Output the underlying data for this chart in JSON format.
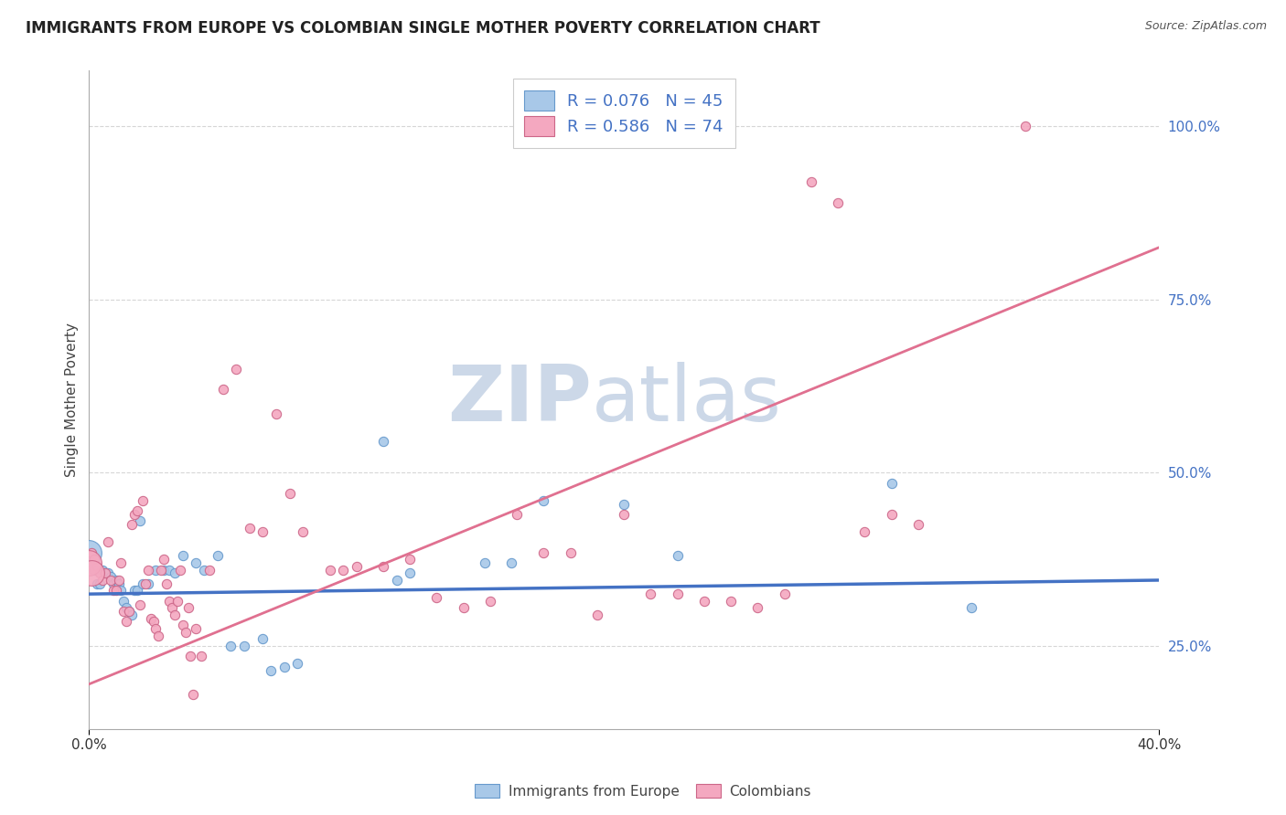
{
  "title": "IMMIGRANTS FROM EUROPE VS COLOMBIAN SINGLE MOTHER POVERTY CORRELATION CHART",
  "source": "Source: ZipAtlas.com",
  "ylabel": "Single Mother Poverty",
  "ytick_vals": [
    0.25,
    0.5,
    0.75,
    1.0
  ],
  "ytick_labels": [
    "25.0%",
    "50.0%",
    "75.0%",
    "100.0%"
  ],
  "xlim": [
    0.0,
    0.4
  ],
  "ylim": [
    0.13,
    1.08
  ],
  "legend_entries": [
    {
      "label": "R = 0.076   N = 45",
      "color": "#a8c8e8"
    },
    {
      "label": "R = 0.586   N = 74",
      "color": "#f4b8c8"
    }
  ],
  "legend_bottom": [
    {
      "label": "Immigrants from Europe",
      "color": "#a8c8e8"
    },
    {
      "label": "Colombians",
      "color": "#f4b8c8"
    }
  ],
  "blue_scatter": {
    "color": "#a8c8e8",
    "edge_color": "#6699cc",
    "points": [
      [
        0.001,
        0.385
      ],
      [
        0.002,
        0.36
      ],
      [
        0.003,
        0.34
      ],
      [
        0.004,
        0.34
      ],
      [
        0.005,
        0.36
      ],
      [
        0.006,
        0.355
      ],
      [
        0.007,
        0.355
      ],
      [
        0.008,
        0.35
      ],
      [
        0.009,
        0.34
      ],
      [
        0.01,
        0.345
      ],
      [
        0.011,
        0.34
      ],
      [
        0.012,
        0.33
      ],
      [
        0.013,
        0.315
      ],
      [
        0.014,
        0.305
      ],
      [
        0.015,
        0.3
      ],
      [
        0.016,
        0.295
      ],
      [
        0.017,
        0.33
      ],
      [
        0.018,
        0.33
      ],
      [
        0.019,
        0.43
      ],
      [
        0.02,
        0.34
      ],
      [
        0.022,
        0.34
      ],
      [
        0.025,
        0.36
      ],
      [
        0.028,
        0.36
      ],
      [
        0.03,
        0.36
      ],
      [
        0.032,
        0.355
      ],
      [
        0.035,
        0.38
      ],
      [
        0.04,
        0.37
      ],
      [
        0.043,
        0.36
      ],
      [
        0.048,
        0.38
      ],
      [
        0.053,
        0.25
      ],
      [
        0.058,
        0.25
      ],
      [
        0.065,
        0.26
      ],
      [
        0.068,
        0.215
      ],
      [
        0.073,
        0.22
      ],
      [
        0.078,
        0.225
      ],
      [
        0.11,
        0.545
      ],
      [
        0.115,
        0.345
      ],
      [
        0.12,
        0.355
      ],
      [
        0.148,
        0.37
      ],
      [
        0.158,
        0.37
      ],
      [
        0.17,
        0.46
      ],
      [
        0.2,
        0.455
      ],
      [
        0.22,
        0.38
      ],
      [
        0.3,
        0.485
      ],
      [
        0.33,
        0.305
      ]
    ],
    "size": 55
  },
  "pink_scatter": {
    "color": "#f4a8c0",
    "edge_color": "#cc6688",
    "points": [
      [
        0.001,
        0.385
      ],
      [
        0.002,
        0.375
      ],
      [
        0.003,
        0.365
      ],
      [
        0.004,
        0.355
      ],
      [
        0.005,
        0.345
      ],
      [
        0.006,
        0.355
      ],
      [
        0.007,
        0.4
      ],
      [
        0.008,
        0.345
      ],
      [
        0.009,
        0.33
      ],
      [
        0.01,
        0.33
      ],
      [
        0.011,
        0.345
      ],
      [
        0.012,
        0.37
      ],
      [
        0.013,
        0.3
      ],
      [
        0.014,
        0.285
      ],
      [
        0.015,
        0.3
      ],
      [
        0.016,
        0.425
      ],
      [
        0.017,
        0.44
      ],
      [
        0.018,
        0.445
      ],
      [
        0.019,
        0.31
      ],
      [
        0.02,
        0.46
      ],
      [
        0.021,
        0.34
      ],
      [
        0.022,
        0.36
      ],
      [
        0.023,
        0.29
      ],
      [
        0.024,
        0.285
      ],
      [
        0.025,
        0.275
      ],
      [
        0.026,
        0.265
      ],
      [
        0.027,
        0.36
      ],
      [
        0.028,
        0.375
      ],
      [
        0.029,
        0.34
      ],
      [
        0.03,
        0.315
      ],
      [
        0.031,
        0.305
      ],
      [
        0.032,
        0.295
      ],
      [
        0.033,
        0.315
      ],
      [
        0.034,
        0.36
      ],
      [
        0.035,
        0.28
      ],
      [
        0.036,
        0.27
      ],
      [
        0.037,
        0.305
      ],
      [
        0.038,
        0.235
      ],
      [
        0.039,
        0.18
      ],
      [
        0.04,
        0.275
      ],
      [
        0.042,
        0.235
      ],
      [
        0.045,
        0.36
      ],
      [
        0.05,
        0.62
      ],
      [
        0.055,
        0.65
      ],
      [
        0.06,
        0.42
      ],
      [
        0.065,
        0.415
      ],
      [
        0.07,
        0.585
      ],
      [
        0.075,
        0.47
      ],
      [
        0.08,
        0.415
      ],
      [
        0.09,
        0.36
      ],
      [
        0.095,
        0.36
      ],
      [
        0.1,
        0.365
      ],
      [
        0.11,
        0.365
      ],
      [
        0.12,
        0.375
      ],
      [
        0.13,
        0.32
      ],
      [
        0.14,
        0.305
      ],
      [
        0.15,
        0.315
      ],
      [
        0.16,
        0.44
      ],
      [
        0.17,
        0.385
      ],
      [
        0.18,
        0.385
      ],
      [
        0.19,
        0.295
      ],
      [
        0.2,
        0.44
      ],
      [
        0.21,
        0.325
      ],
      [
        0.22,
        0.325
      ],
      [
        0.23,
        0.315
      ],
      [
        0.24,
        0.315
      ],
      [
        0.25,
        0.305
      ],
      [
        0.26,
        0.325
      ],
      [
        0.27,
        0.92
      ],
      [
        0.28,
        0.89
      ],
      [
        0.29,
        0.415
      ],
      [
        0.3,
        0.44
      ],
      [
        0.31,
        0.425
      ],
      [
        0.35,
        1.0
      ]
    ],
    "size": 55
  },
  "blue_scatter_large": {
    "color": "#a8c8e8",
    "edge_color": "#6699cc",
    "points": [
      [
        0.0,
        0.385
      ]
    ],
    "size": 400
  },
  "pink_scatter_large": {
    "color": "#f4a8c0",
    "edge_color": "#cc6688",
    "points": [
      [
        0.0,
        0.37
      ],
      [
        0.001,
        0.355
      ]
    ],
    "size": 400
  },
  "blue_line": {
    "color": "#4472c4",
    "x": [
      0.0,
      0.4
    ],
    "y": [
      0.325,
      0.345
    ]
  },
  "pink_line": {
    "color": "#e07090",
    "x": [
      0.0,
      0.4
    ],
    "y": [
      0.195,
      0.825
    ]
  },
  "watermark_zip": "ZIP",
  "watermark_atlas": "atlas",
  "watermark_color": "#ccd8e8",
  "background_color": "#ffffff",
  "grid_color": "#cccccc",
  "title_fontsize": 12,
  "source_fontsize": 9
}
